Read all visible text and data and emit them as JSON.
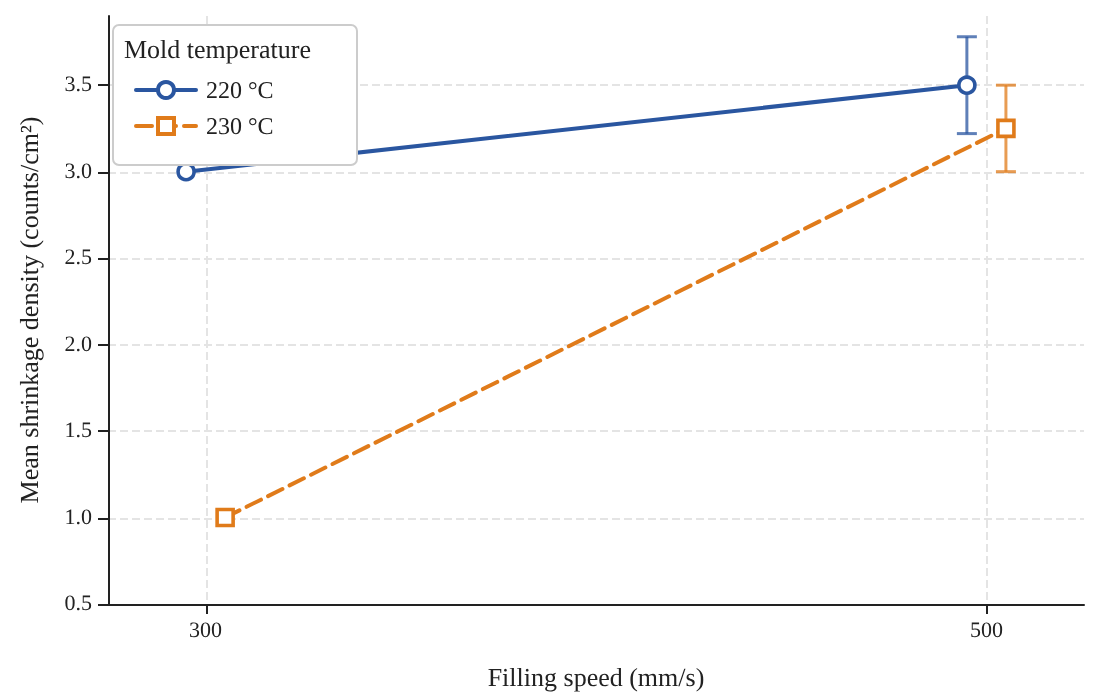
{
  "chart_data": {
    "type": "line",
    "xlabel": "Filling speed (mm/s)",
    "ylabel": "Mean shrinkage density (counts/cm²)",
    "legend_title": "Mold temperature",
    "legend": "top left",
    "grid": true,
    "xlim": [
      275,
      525
    ],
    "xticks": [
      300,
      500
    ],
    "ylim": [
      0.5,
      3.9
    ],
    "yticks": [
      0.5,
      {
        "value": 1,
        "label": "1.0"
      },
      1.5,
      {
        "value": 2,
        "label": "2.0"
      },
      2.5,
      {
        "value": 3,
        "label": "3.0"
      },
      3.5
    ],
    "series": [
      {
        "name": "220 °C",
        "color": "#2a56a0",
        "x": [
          295,
          495
        ],
        "values": [
          3.0,
          3.5
        ],
        "errors": [
          null,
          0.28
        ],
        "marker": "circle",
        "line_style": "solid"
      },
      {
        "name": "230 °C",
        "color": "#e07b1a",
        "x": [
          305,
          505
        ],
        "values": [
          1.0,
          3.25
        ],
        "errors": [
          null,
          0.25
        ],
        "marker": "square",
        "line_style": "dashed"
      }
    ]
  }
}
